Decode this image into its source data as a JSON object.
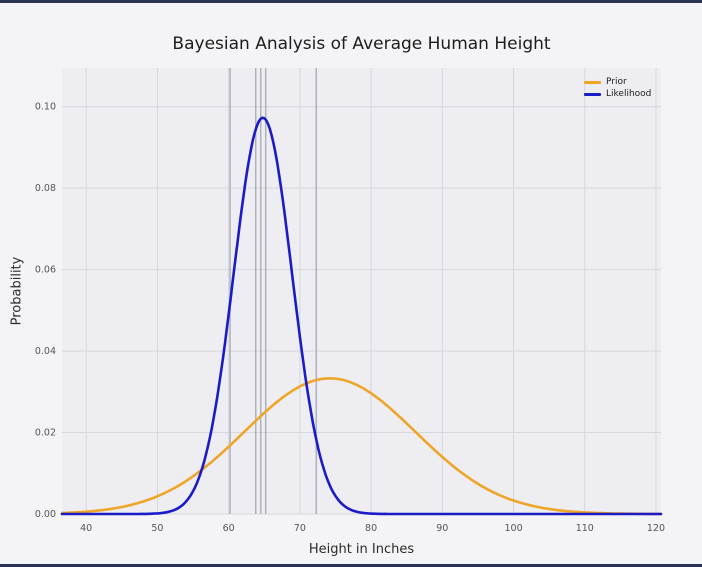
{
  "figure": {
    "background": "#f4f3f6",
    "plot_background": "#eeedf2",
    "grid_color": "#d7d7dc",
    "edge_color": "#2a3550"
  },
  "chart_data": {
    "type": "line",
    "title": "Bayesian Analysis of Average Human Height",
    "xlabel": "Height in Inches",
    "ylabel": "Probability",
    "xlim": [
      36.6,
      120.7
    ],
    "ylim": [
      0,
      0.1095
    ],
    "xticks": [
      40,
      50,
      60,
      70,
      80,
      90,
      100,
      110,
      120
    ],
    "yticks": [
      0.0,
      0.02,
      0.04,
      0.06,
      0.08,
      0.1
    ],
    "ytick_labels": [
      "0.00",
      "0.02",
      "0.04",
      "0.06",
      "0.08",
      "0.10"
    ],
    "grid": true,
    "legend_position": "upper right",
    "series": [
      {
        "name": "Prior",
        "color": "#efa528",
        "shape": "normal",
        "mean": 74.2,
        "sd": 12.0,
        "peak": 0.0333
      },
      {
        "name": "Likelihood",
        "color": "#1b1bc8",
        "shape": "normal",
        "mean": 64.8,
        "sd": 4.1,
        "peak": 0.0973
      }
    ],
    "observed_heights": [
      60.2,
      63.8,
      64.5,
      65.2,
      72.3
    ],
    "observed_line_color": "#8f949b"
  }
}
